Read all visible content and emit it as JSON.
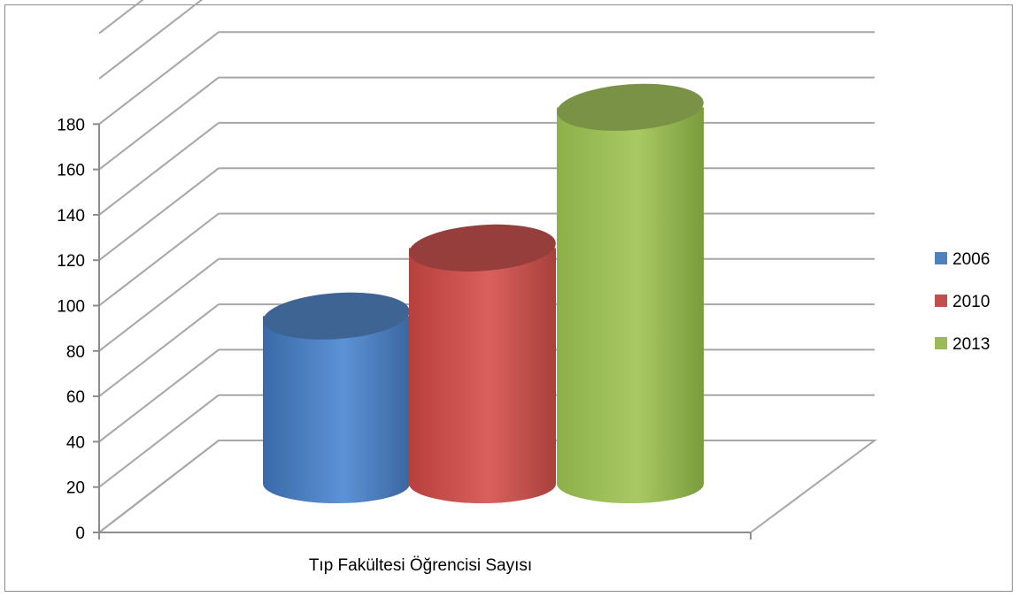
{
  "chart_data": {
    "type": "bar",
    "style": "3d-cylinder",
    "categories": [
      "Tıp Fakültesi Öğrencisi Sayısı"
    ],
    "series": [
      {
        "name": "2006",
        "values": [
          95
        ],
        "color": "#4f81bd"
      },
      {
        "name": "2010",
        "values": [
          125
        ],
        "color": "#c0504d"
      },
      {
        "name": "2013",
        "values": [
          187
        ],
        "color": "#9bbb59"
      }
    ],
    "ylim": [
      0,
      180
    ],
    "yticks": [
      0,
      20,
      40,
      60,
      80,
      100,
      120,
      140,
      160,
      180
    ],
    "grid": true,
    "legend": "right"
  }
}
